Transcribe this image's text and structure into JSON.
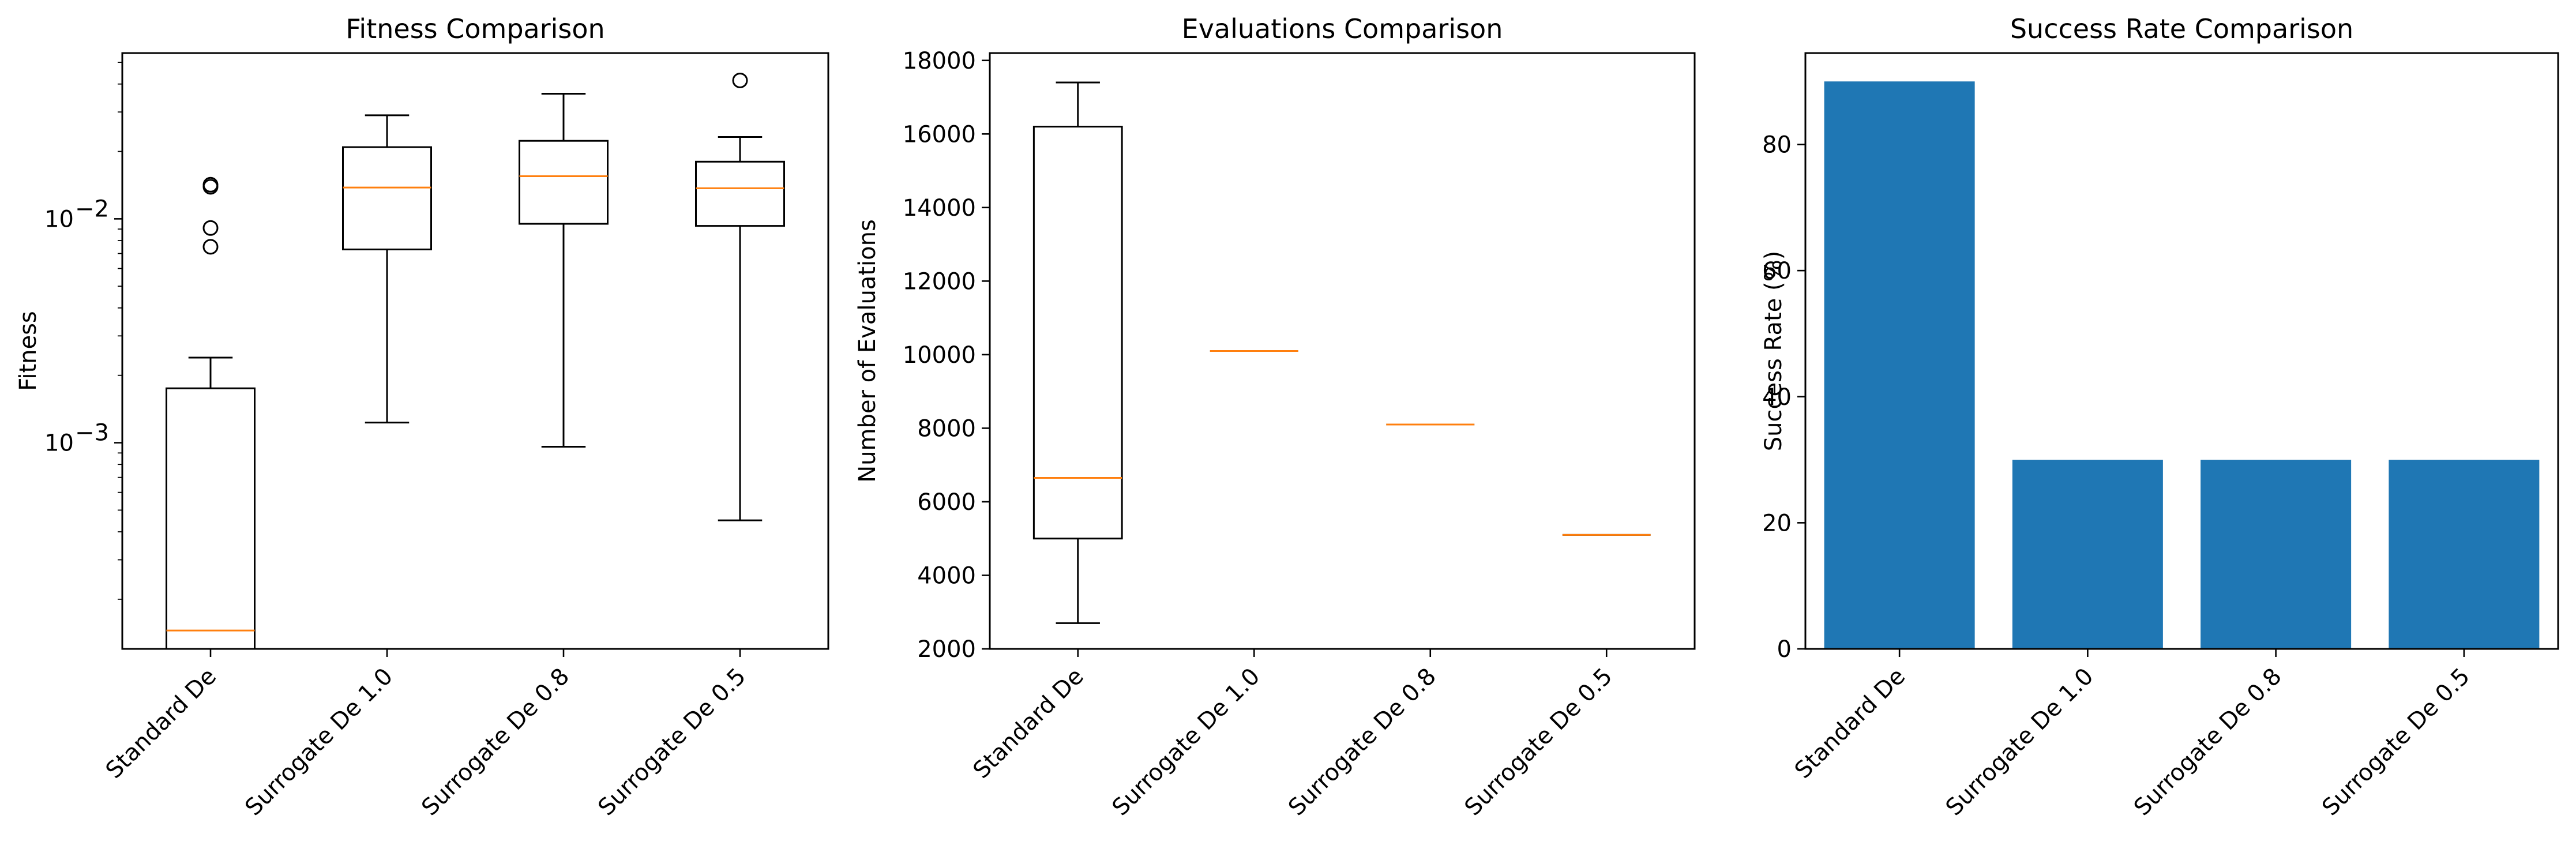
{
  "chart_data": [
    {
      "type": "box",
      "title": "Fitness Comparison",
      "ylabel": "Fitness",
      "yscale": "log",
      "ylim": [
        0.00012,
        0.055
      ],
      "ytick_labels": [
        {
          "value": 0.001,
          "base": "10",
          "exp": "−3"
        },
        {
          "value": 0.01,
          "base": "10",
          "exp": "−2"
        }
      ],
      "categories": [
        "Standard De",
        "Surrogate De 1.0",
        "Surrogate De 0.8",
        "Surrogate De 0.5"
      ],
      "boxes": [
        {
          "whisker_low": 0.00012,
          "q1": 0.00012,
          "median": 0.000145,
          "q3": 0.00175,
          "whisker_high": 0.0024,
          "fliers": [
            0.0075,
            0.0091,
            0.0139,
            0.0142
          ]
        },
        {
          "whisker_low": 0.00123,
          "q1": 0.0073,
          "median": 0.0138,
          "q3": 0.0209,
          "whisker_high": 0.029,
          "fliers": []
        },
        {
          "whisker_low": 0.00096,
          "q1": 0.0095,
          "median": 0.0155,
          "q3": 0.0223,
          "whisker_high": 0.0362,
          "fliers": []
        },
        {
          "whisker_low": 0.00045,
          "q1": 0.0093,
          "median": 0.0137,
          "q3": 0.018,
          "whisker_high": 0.0232,
          "fliers": [
            0.0415
          ]
        }
      ],
      "grid": false,
      "legend": "none"
    },
    {
      "type": "box",
      "title": "Evaluations Comparison",
      "ylabel": "Number of Evaluations",
      "yscale": "linear",
      "ylim": [
        2000,
        18200
      ],
      "yticks": [
        2000,
        4000,
        6000,
        8000,
        10000,
        12000,
        14000,
        16000,
        18000
      ],
      "categories": [
        "Standard De",
        "Surrogate De 1.0",
        "Surrogate De 0.8",
        "Surrogate De 0.5"
      ],
      "boxes": [
        {
          "whisker_low": 2700,
          "q1": 5000,
          "median": 6650,
          "q3": 16200,
          "whisker_high": 17400,
          "fliers": []
        },
        {
          "whisker_low": 10100,
          "q1": 10100,
          "median": 10100,
          "q3": 10100,
          "whisker_high": 10100,
          "fliers": []
        },
        {
          "whisker_low": 8100,
          "q1": 8100,
          "median": 8100,
          "q3": 8100,
          "whisker_high": 8100,
          "fliers": []
        },
        {
          "whisker_low": 5100,
          "q1": 5100,
          "median": 5100,
          "q3": 5100,
          "whisker_high": 5100,
          "fliers": []
        }
      ],
      "grid": false,
      "legend": "none"
    },
    {
      "type": "bar",
      "title": "Success Rate Comparison",
      "ylabel": "Success Rate (%)",
      "yscale": "linear",
      "ylim": [
        0,
        94.5
      ],
      "yticks": [
        0,
        20,
        40,
        60,
        80
      ],
      "categories": [
        "Standard De",
        "Surrogate De 1.0",
        "Surrogate De 0.8",
        "Surrogate De 0.5"
      ],
      "values": [
        90,
        30,
        30,
        30
      ],
      "bar_color": "#1f77b4",
      "grid": false,
      "legend": "none"
    }
  ]
}
